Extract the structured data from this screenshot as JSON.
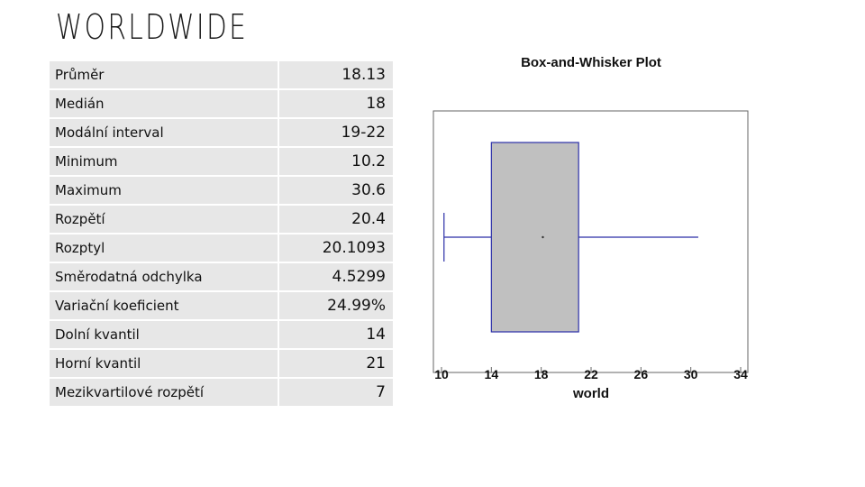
{
  "title": "WORLDWIDE",
  "stats": [
    {
      "label": "Průměr",
      "value": "18.13"
    },
    {
      "label": "Medián",
      "value": "18"
    },
    {
      "label": "Modální interval",
      "value": "19-22"
    },
    {
      "label": "Minimum",
      "value": "10.2"
    },
    {
      "label": "Maximum",
      "value": "30.6"
    },
    {
      "label": "Rozpětí",
      "value": "20.4"
    },
    {
      "label": "Rozptyl",
      "value": "20.1093"
    },
    {
      "label": "Směrodatná odchylka",
      "value": "4.5299"
    },
    {
      "label": "Variační koeficient",
      "value": "24.99%"
    },
    {
      "label": "Dolní kvantil",
      "value": "14"
    },
    {
      "label": "Horní kvantil",
      "value": "21"
    },
    {
      "label": "Mezikvartilové rozpětí",
      "value": "7"
    }
  ],
  "chart_data": {
    "type": "box",
    "title": "Box-and-Whisker Plot",
    "xlabel": "world",
    "xlim": [
      10,
      34
    ],
    "xticks": [
      10,
      14,
      18,
      22,
      26,
      30,
      34
    ],
    "min": 10.2,
    "q1": 14,
    "mean": 18.13,
    "q3": 21,
    "max": 30.6,
    "colors": {
      "box_fill": "#c0c0c0",
      "box_stroke": "#2b2fa8",
      "whisker": "#2b2fa8",
      "axis": "#666666"
    }
  }
}
